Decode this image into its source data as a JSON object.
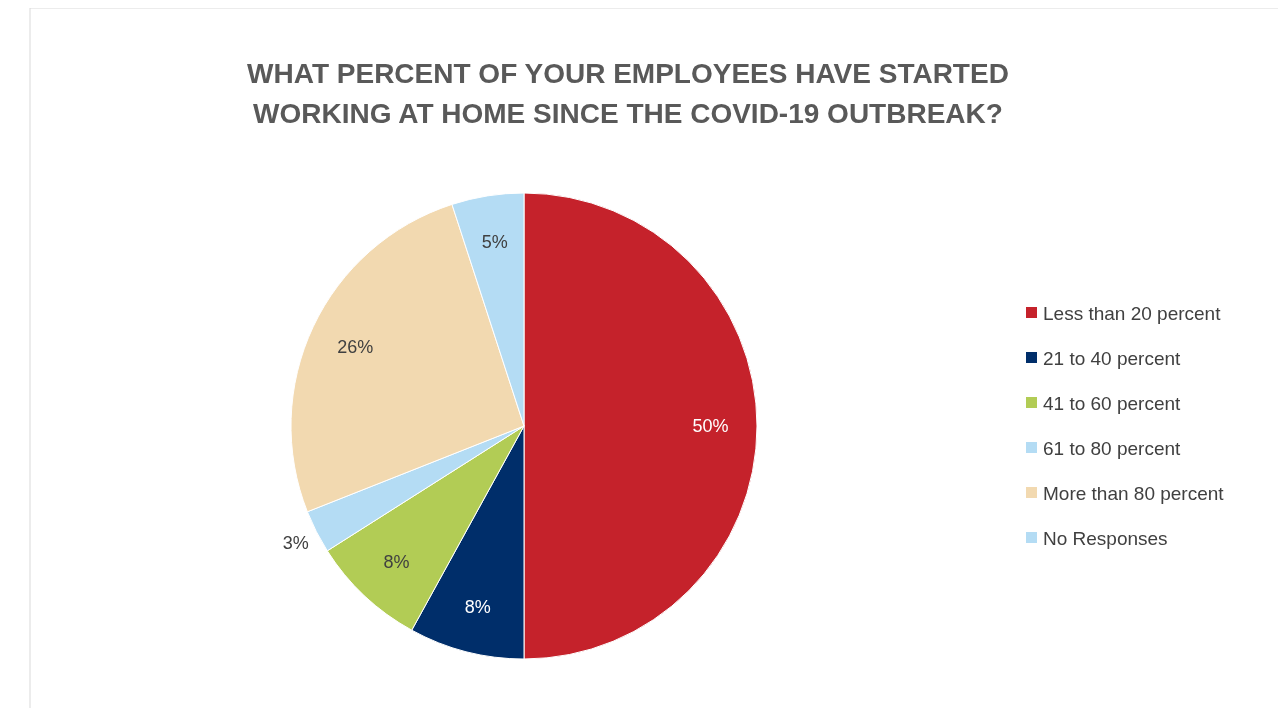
{
  "chart_data": {
    "type": "pie",
    "title": "WHAT PERCENT OF YOUR EMPLOYEES HAVE STARTED WORKING AT HOME SINCE THE COVID-19 OUTBREAK?",
    "categories": [
      "Less than 20 percent",
      "21 to 40 percent",
      "41 to 60 percent",
      "61 to 80 percent",
      "More than 80 percent",
      "No Responses"
    ],
    "values": [
      50,
      8,
      8,
      3,
      26,
      5
    ],
    "value_labels": [
      "50%",
      "8%",
      "8%",
      "3%",
      "26%",
      "5%"
    ],
    "colors": [
      "#c5222b",
      "#002e6a",
      "#b2cc55",
      "#b4dcf4",
      "#f2d9b0",
      "#b4dcf4"
    ],
    "legend": "right"
  }
}
